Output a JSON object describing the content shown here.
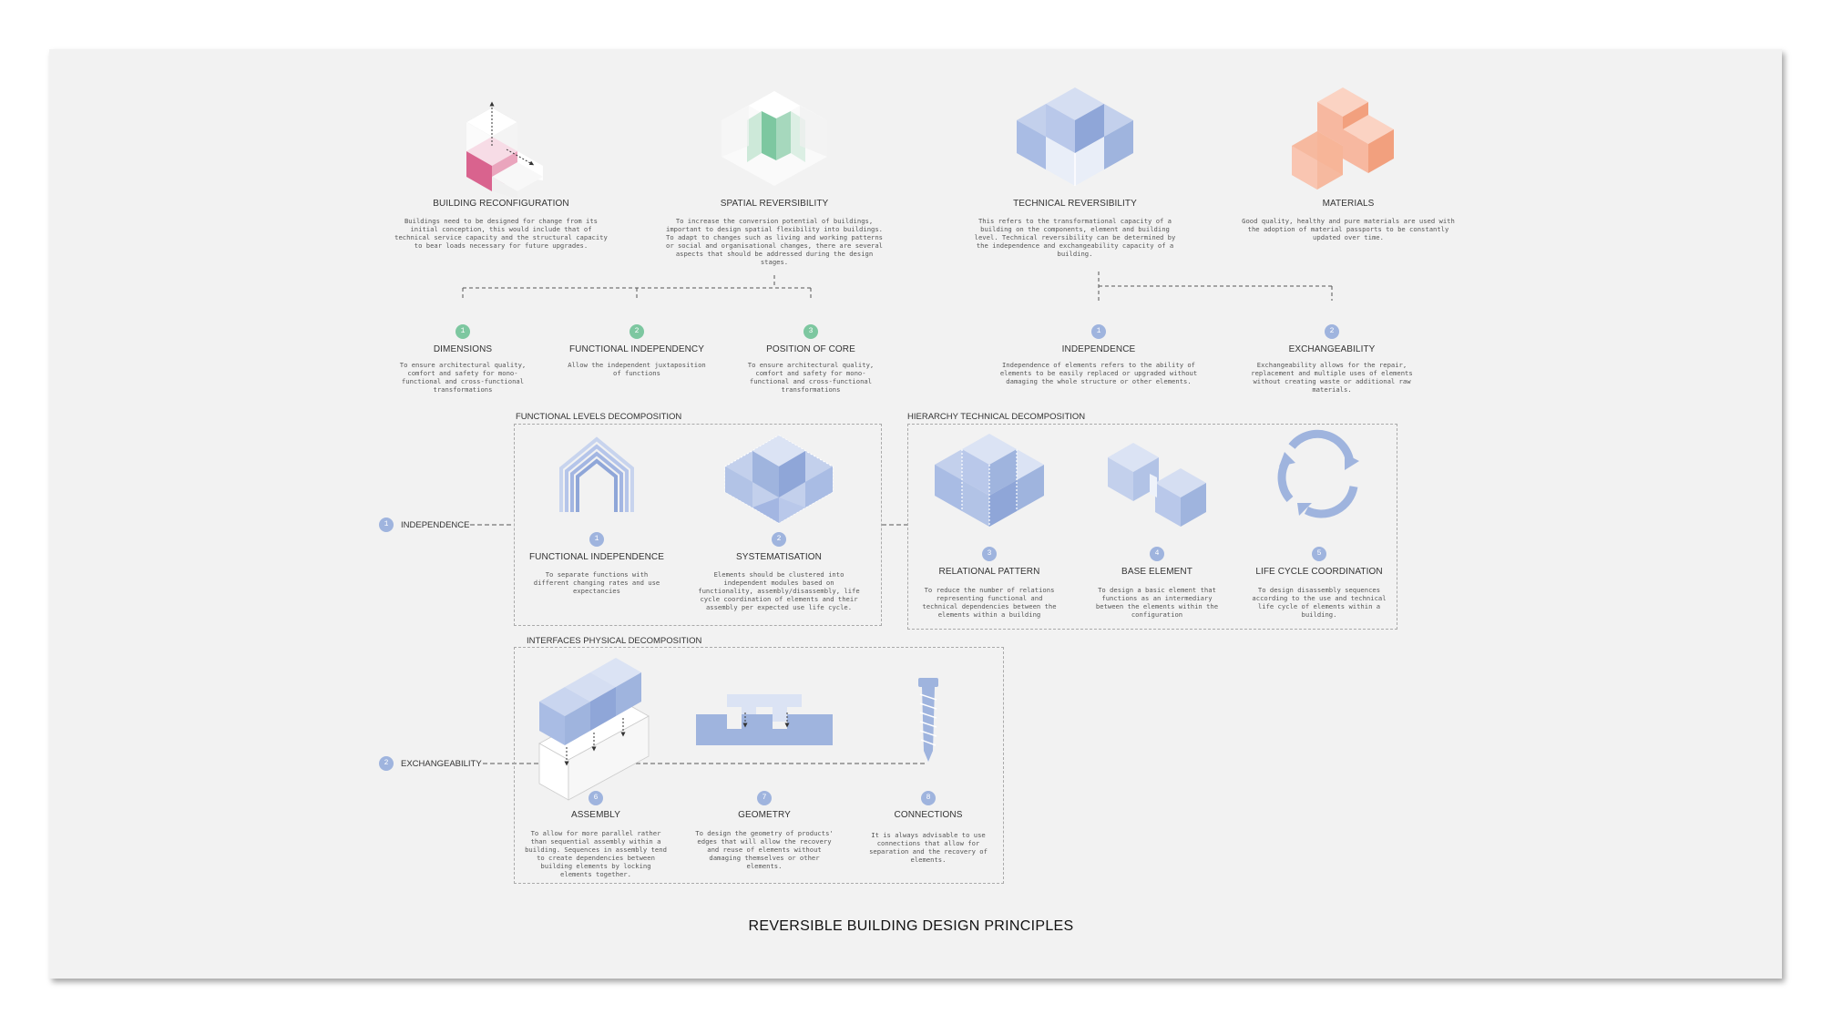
{
  "principles": [
    {
      "title": "BUILDING RECONFIGURATION",
      "desc": "Buildings need to be designed for change from its initial conception, this would include that of technical service capacity and the structural capacity to bear loads necessary for future upgrades."
    },
    {
      "title": "SPATIAL REVERSIBILITY",
      "desc": "To increase the conversion potential of buildings, important to design spatial flexibility into buildings. To adapt to changes such as living and working patterns or social and organisational changes, there are several aspects that should be addressed during the design stages."
    },
    {
      "title": "TECHNICAL REVERSIBILITY",
      "desc": "This refers to the transformational capacity of a building on the components, element and building level. Technical reversibility can be determined by the independence and exchangeability capacity of a building."
    },
    {
      "title": "MATERIALS",
      "desc": "Good quality, healthy and pure materials are used with the adoption of material passports to be constantly updated over time."
    }
  ],
  "spatial_aspects": [
    {
      "num": "1",
      "title": "DIMENSIONS",
      "desc": "To ensure architectural quality, comfort and safety for mono-functional and cross-functional transformations"
    },
    {
      "num": "2",
      "title": "FUNCTIONAL INDEPENDENCY",
      "desc": "Allow the independent juxtaposition of functions"
    },
    {
      "num": "3",
      "title": "POSITION OF CORE",
      "desc": "To ensure architectural quality, comfort and safety for mono-functional and cross-functional transformations"
    }
  ],
  "technical_aspects": [
    {
      "num": "1",
      "title": "INDEPENDENCE",
      "desc": "Independence of elements refers to the ability of elements to be easily replaced or upgraded without damaging the whole structure or other elements."
    },
    {
      "num": "2",
      "title": "EXCHANGEABILITY",
      "desc": "Exchangeability allows for the repair, replacement and multiple uses of elements without creating waste or additional raw materials."
    }
  ],
  "sections": {
    "functional_levels": "FUNCTIONAL LEVELS DECOMPOSITION",
    "hierarchy_technical": "HIERARCHY TECHNICAL DECOMPOSITION",
    "interfaces_physical": "INTERFACES PHYSICAL DECOMPOSITION"
  },
  "side_labels": [
    {
      "num": "1",
      "label": "INDEPENDENCE"
    },
    {
      "num": "2",
      "label": "EXCHANGEABILITY"
    }
  ],
  "decomposition_items": [
    {
      "num": "1",
      "title": "FUNCTIONAL INDEPENDENCE",
      "desc": "To separate functions with different changing rates and use expectancies"
    },
    {
      "num": "2",
      "title": "SYSTEMATISATION",
      "desc": "Elements should be clustered into independent modules based on functionality, assembly/disassembly, life cycle coordination of elements and their assembly per expected use life cycle."
    },
    {
      "num": "3",
      "title": "RELATIONAL PATTERN",
      "desc": "To reduce the number of relations representing functional and technical dependencies between the elements within a building"
    },
    {
      "num": "4",
      "title": "BASE ELEMENT",
      "desc": "To design a basic element that functions as an intermediary between the elements within the configuration"
    },
    {
      "num": "5",
      "title": "LIFE CYCLE COORDINATION",
      "desc": "To design disassembly sequences according to the use and technical life cycle of elements within a building."
    },
    {
      "num": "6",
      "title": "ASSEMBLY",
      "desc": "To allow for more parallel rather than sequential assembly within a building. Sequences in assembly tend to create dependencies between building elements by locking elements together."
    },
    {
      "num": "7",
      "title": "GEOMETRY",
      "desc": "To design the geometry of products' edges that will allow the recovery and reuse of elements without damaging themselves or other elements."
    },
    {
      "num": "8",
      "title": "CONNECTIONS",
      "desc": "It is always advisable to use connections that allow for separation and the recovery of elements."
    }
  ],
  "footer_title": "REVERSIBLE BUILDING DESIGN PRINCIPLES",
  "colors": {
    "pink": "#d9638e",
    "green": "#7dc7a0",
    "blue": "#9fb4de",
    "orange": "#f2a07e",
    "board": "#f2f2f2"
  }
}
